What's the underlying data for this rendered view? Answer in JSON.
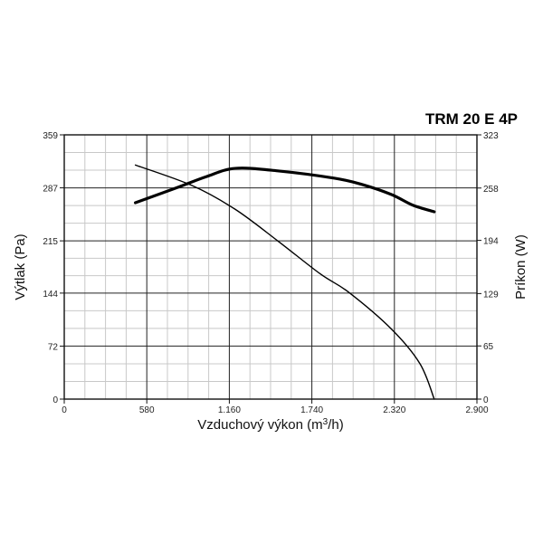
{
  "chart_data": {
    "type": "line",
    "title": "TRM 20 E 4P",
    "xlabel": "Vzduchový výkon (m",
    "xlabel_sup": "3",
    "xlabel_suffix": "/h)",
    "ylabel_left": "Výtlak (Pa)",
    "ylabel_right": "Príkon (W)",
    "xlim": [
      0,
      2900
    ],
    "ylim_left": [
      0,
      359
    ],
    "ylim_right": [
      0,
      323
    ],
    "x_ticks": [
      0,
      580,
      1160,
      1740,
      2320,
      2900
    ],
    "x_tick_labels": [
      "0",
      "580",
      "1.160",
      "1.740",
      "2.320",
      "2.900"
    ],
    "y_left_ticks": [
      0,
      72,
      144,
      215,
      287,
      359
    ],
    "y_left_tick_labels": [
      "0",
      "72",
      "144",
      "215",
      "287",
      "359"
    ],
    "y_right_ticks": [
      0,
      65,
      129,
      194,
      258,
      323
    ],
    "y_right_tick_labels": [
      "0",
      "65",
      "129",
      "194",
      "258",
      "323"
    ],
    "grid": true,
    "series": [
      {
        "axis": "left",
        "line_weight": "thin",
        "points": [
          [
            500,
            318
          ],
          [
            900,
            290
          ],
          [
            1200,
            258
          ],
          [
            1500,
            215
          ],
          [
            1800,
            170
          ],
          [
            2000,
            145
          ],
          [
            2300,
            95
          ],
          [
            2500,
            48
          ],
          [
            2600,
            0
          ]
        ]
      },
      {
        "axis": "right",
        "line_weight": "thick",
        "points": [
          [
            500,
            240
          ],
          [
            800,
            259
          ],
          [
            1000,
            272
          ],
          [
            1200,
            282
          ],
          [
            1500,
            279
          ],
          [
            1900,
            270
          ],
          [
            2100,
            262
          ],
          [
            2300,
            250
          ],
          [
            2450,
            237
          ],
          [
            2600,
            229
          ]
        ]
      }
    ],
    "colors": {
      "lines": "#000000",
      "grid_major": "#222222",
      "grid_minor": "#c8c8c8"
    }
  }
}
